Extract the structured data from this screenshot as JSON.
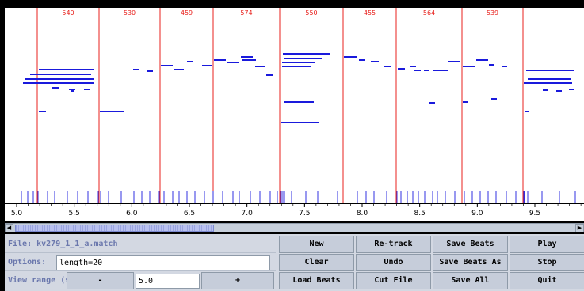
{
  "plot": {
    "x_ticks": [
      "5.0",
      "5.5",
      "6.0",
      "6.5",
      "7.0",
      "7.5",
      "8.0",
      "8.5",
      "9.0",
      "9.5"
    ],
    "beat_labels": [
      "540",
      "530",
      "459",
      "574",
      "550",
      "455",
      "564",
      "539"
    ],
    "colors": {
      "beat_line": "#e8201c",
      "note": "#1a1adc",
      "onset": "#3030e0",
      "tick_text": "#000000"
    }
  },
  "scrollbar": {
    "left_arrow": "◀",
    "right_arrow": "▶",
    "thumb_fraction": 0.36
  },
  "controls": {
    "file_label": "File: kv279_1_1_a.match",
    "options_label": "Options:",
    "options_value": "length=20",
    "view_range_label": "View range (s):",
    "minus_label": "-",
    "view_range_value": "5.0",
    "plus_label": "+"
  },
  "buttons": [
    {
      "name": "new-button",
      "label": "New"
    },
    {
      "name": "retrack-button",
      "label": "Re-track"
    },
    {
      "name": "save-beats-button",
      "label": "Save Beats"
    },
    {
      "name": "play-button",
      "label": "Play"
    },
    {
      "name": "clear-button",
      "label": "Clear"
    },
    {
      "name": "undo-button",
      "label": "Undo"
    },
    {
      "name": "save-beats-as-button",
      "label": "Save Beats As"
    },
    {
      "name": "stop-button",
      "label": "Stop"
    },
    {
      "name": "load-beats-button",
      "label": "Load Beats"
    },
    {
      "name": "cut-file-button",
      "label": "Cut File"
    },
    {
      "name": "save-all-button",
      "label": "Save All"
    },
    {
      "name": "quit-button",
      "label": "Quit"
    }
  ]
}
